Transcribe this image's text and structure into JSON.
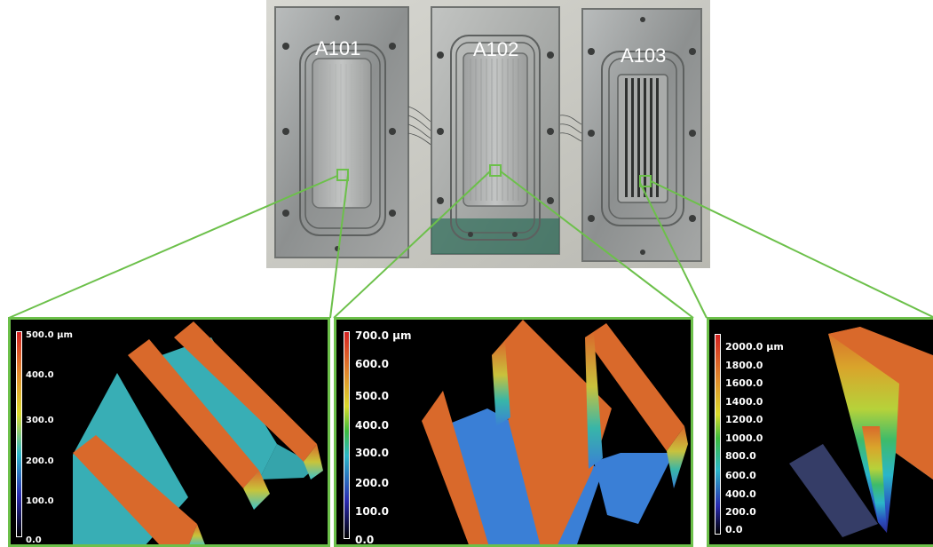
{
  "photo": {
    "plates": [
      {
        "label": "A101"
      },
      {
        "label": "A102"
      },
      {
        "label": "A103"
      }
    ]
  },
  "panels": [
    {
      "plate": "A101",
      "colorbar_ticks": [
        "500.0 µm",
        "400.0",
        "300.0",
        "200.0",
        "100.0",
        "0.0"
      ]
    },
    {
      "plate": "A102",
      "colorbar_ticks": [
        "700.0 µm",
        "600.0",
        "500.0",
        "400.0",
        "300.0",
        "200.0",
        "100.0",
        "0.0"
      ]
    },
    {
      "plate": "A103",
      "colorbar_ticks": [
        "2000.0 µm",
        "1800.0",
        "1600.0",
        "1400.0",
        "1200.0",
        "1000.0",
        "800.0",
        "600.0",
        "400.0",
        "200.0",
        "0.0"
      ]
    }
  ],
  "colors": {
    "zoom_line": "#6cc04a",
    "ridge": "#d9692b",
    "channel_a101": "#3ec1c9",
    "channel_a102": "#3a7fd6"
  }
}
